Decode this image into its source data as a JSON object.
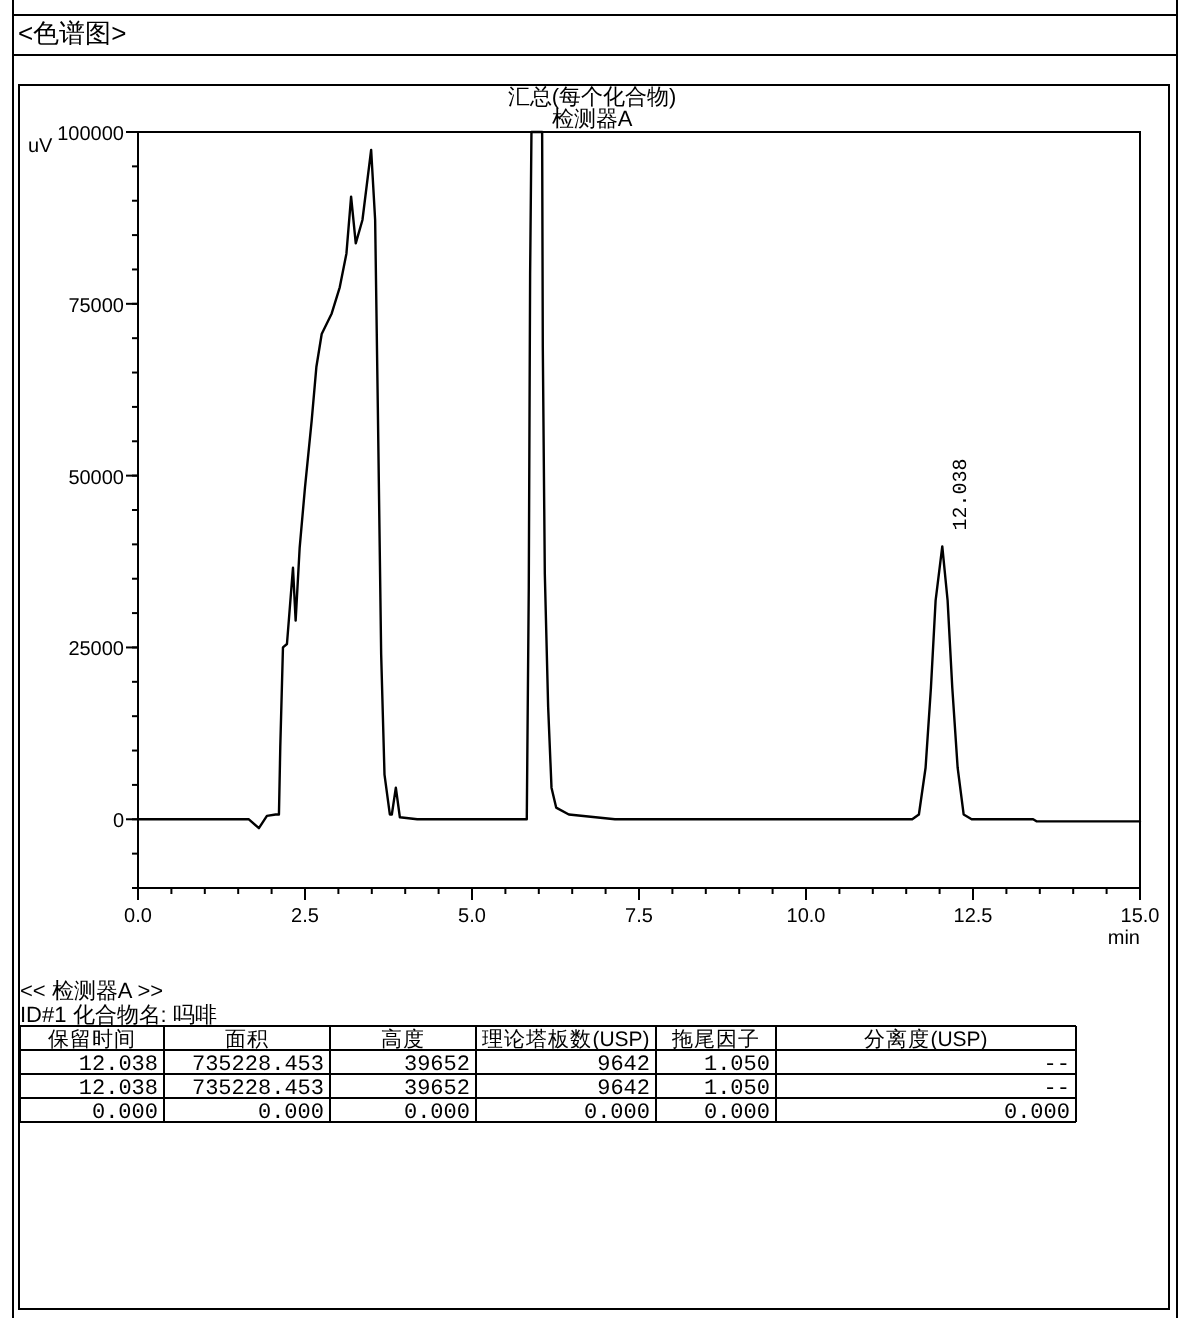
{
  "chart_data": [
    {
      "type": "line",
      "title": "汇总(每个化合物)",
      "subtitle": "检测器A",
      "xlabel": "min",
      "ylabel": "uV",
      "x": [
        0,
        1.66,
        1.81,
        1.93,
        2.06,
        2.11,
        2.13,
        2.17,
        2.23,
        2.32,
        2.36,
        2.42,
        2.5,
        2.6,
        2.67,
        2.75,
        2.9,
        3.02,
        3.12,
        3.19,
        3.26,
        3.36,
        3.49,
        3.55,
        3.59,
        3.64,
        3.69,
        3.77,
        3.8,
        3.86,
        3.92,
        4.18,
        5.82,
        5.85,
        5.87,
        5.89,
        6.05,
        6.06,
        6.09,
        6.14,
        6.19,
        6.26,
        6.45,
        7.14,
        11.59,
        11.69,
        11.79,
        11.87,
        11.94,
        12.04,
        12.12,
        12.19,
        12.27,
        12.36,
        12.48,
        13.4,
        13.45,
        14.6,
        15
      ],
      "series": [
        {
          "color": "#000000",
          "values": [
            0,
            0,
            -1300,
            500,
            700,
            700,
            10500,
            25000,
            25500,
            36600,
            28900,
            39500,
            48300,
            58000,
            65800,
            70600,
            73600,
            77400,
            82300,
            90600,
            83800,
            87200,
            97400,
            87200,
            60000,
            24000,
            6500,
            700,
            700,
            4600,
            300,
            0,
            0,
            33800,
            79400,
            100000,
            100000,
            68700,
            35700,
            16300,
            4600,
            1700,
            700,
            0,
            0,
            700,
            7500,
            19100,
            31800,
            39700,
            31800,
            19100,
            7500,
            700,
            0,
            0,
            -300,
            -300,
            -300
          ]
        }
      ],
      "xlim": [
        0,
        15
      ],
      "ylim": [
        -10000,
        100000
      ],
      "xticks": [
        {
          "value": 0,
          "label": "0.0"
        },
        2.5,
        {
          "value": 5,
          "label": "5.0"
        },
        7.5,
        {
          "value": 10,
          "label": "10.0"
        },
        12.5,
        {
          "value": 15,
          "label": "15.0"
        }
      ],
      "yticks": [
        0,
        25000,
        50000,
        75000,
        100000
      ],
      "annotations": [
        "<色谱图>",
        {
          "text": "12.038",
          "x": 12.04,
          "y": 39700
        }
      ]
    },
    {
      "type": "other",
      "title": "<< 检测器A >>",
      "subtitle": "ID#1 化合物名: 吗啡",
      "categories": [
        "保留时间",
        "面积",
        "高度",
        "理论塔板数(USP)",
        "拖尾因子",
        "分离度(USP)"
      ],
      "cell_labels": [
        [
          "12.038",
          "735228.453",
          "39652",
          "9642",
          "1.050",
          "--"
        ],
        [
          "12.038",
          "735228.453",
          "39652",
          "9642",
          "1.050",
          "--"
        ],
        [
          "0.000",
          "0.000",
          "0.000",
          "0.000",
          "0.000",
          "0.000"
        ]
      ]
    }
  ]
}
